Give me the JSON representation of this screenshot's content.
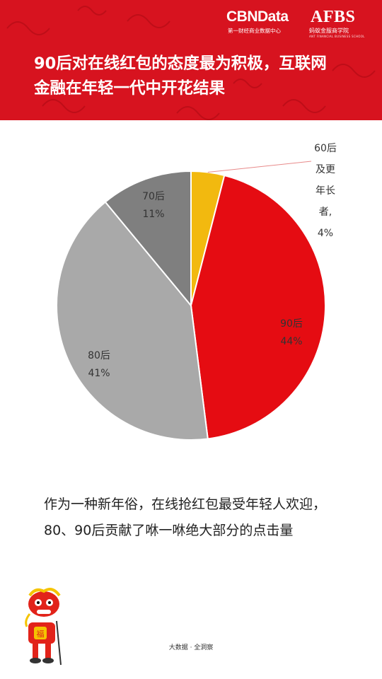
{
  "header": {
    "brand_cbn": "CBNData",
    "brand_cbn_sub": "第一财经商业数据中心",
    "brand_afbs": "AFBS",
    "brand_afbs_sub": "蚂蚁金服商学院",
    "brand_afbs_en": "ANT FINANCIAL BUSINESS SCHOOL",
    "title_line1": "90后对在线红包的态度最为积极，互联网",
    "title_line2": "金融在年轻一代中开花结果",
    "color": "#d7131f"
  },
  "chart_data": {
    "type": "pie",
    "start_angle_deg": 0,
    "direction": "clockwise",
    "slices": [
      {
        "label_lines": [
          "60后",
          "及更",
          "年长",
          "者,",
          "4%"
        ],
        "value": 4,
        "color": "#f2b90f"
      },
      {
        "label_lines": [
          "90后",
          "44%"
        ],
        "value": 44,
        "color": "#e50c12"
      },
      {
        "label_lines": [
          "80后",
          "41%"
        ],
        "value": 41,
        "color": "#a9a9a9"
      },
      {
        "label_lines": [
          "70后",
          "11%"
        ],
        "value": 11,
        "color": "#7f7f7f"
      }
    ]
  },
  "caption": {
    "line1": "作为一种新年俗，在线抢红包最受年轻人欢迎，",
    "line2": "80、90后贡献了咻一咻绝大部分的点击量"
  },
  "footer": {
    "text": "大数据 · 全洞察"
  }
}
